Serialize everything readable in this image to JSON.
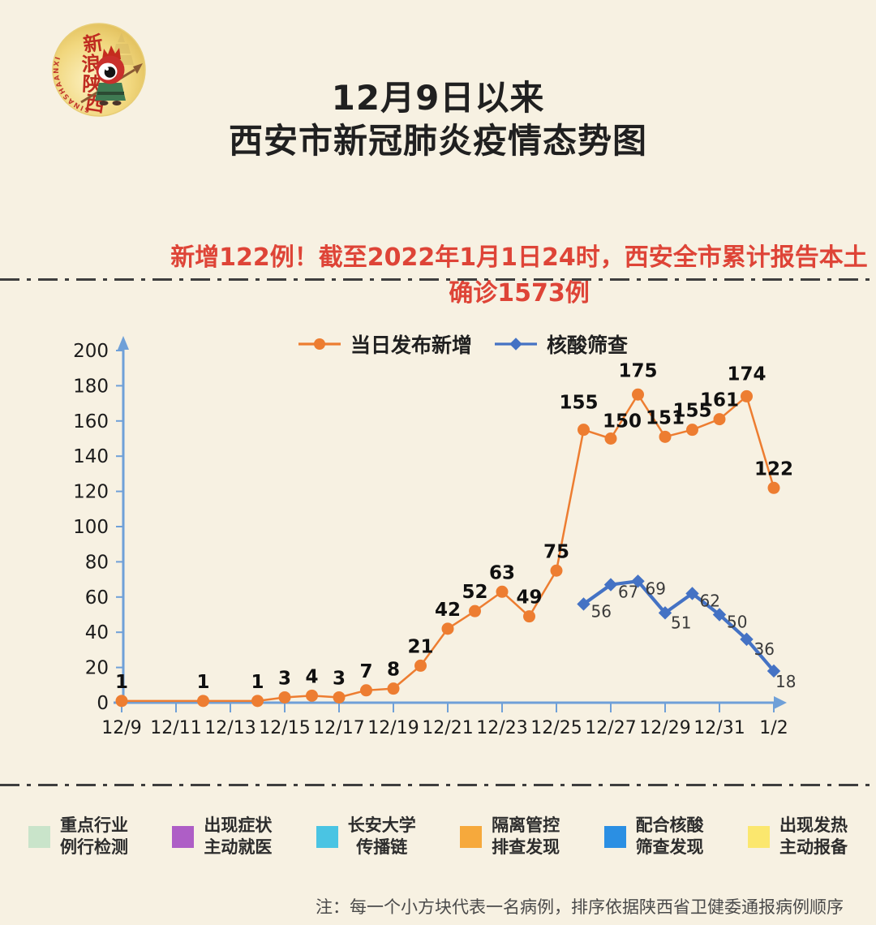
{
  "logo": {
    "brand_chars": [
      "新",
      "浪",
      "陕",
      "西"
    ],
    "brand_latin": "SINASHAANXI"
  },
  "title": {
    "line1": "12月9日以来",
    "line2": "西安市新冠肺炎疫情态势图"
  },
  "subtitle": "新增122例！截至2022年1月1日24时，西安全市累计报告本土确诊1573例",
  "colors": {
    "background": "#F7F1E2",
    "title_text": "#202020",
    "subtitle_red": "#DE4437",
    "axis_blue": "#6FA0D8",
    "tick_label": "#1c1c1c",
    "orange_series": "#ED7D31",
    "blue_series": "#4472C4"
  },
  "chart_data": {
    "type": "line",
    "title": "",
    "legend_position": "top",
    "grid": false,
    "x_axis": {
      "unit": "date",
      "start_date": "12/9",
      "end_date": "1/2",
      "tick_labels": [
        "12/9",
        "12/11",
        "12/13",
        "12/15",
        "12/17",
        "12/19",
        "12/21",
        "12/23",
        "12/25",
        "12/27",
        "12/29",
        "12/31",
        "1/2"
      ]
    },
    "y_axis": {
      "min": 0,
      "max": 200,
      "tick_step": 20,
      "ticks": [
        0,
        20,
        40,
        60,
        80,
        100,
        120,
        140,
        160,
        180,
        200
      ]
    },
    "series": [
      {
        "name": "当日发布新增",
        "color": "#ED7D31",
        "marker": "circle",
        "points": [
          {
            "date": "12/9",
            "day": 0,
            "value": 1
          },
          {
            "date": "12/12",
            "day": 3,
            "value": 1
          },
          {
            "date": "12/14",
            "day": 5,
            "value": 1
          },
          {
            "date": "12/15",
            "day": 6,
            "value": 3
          },
          {
            "date": "12/16",
            "day": 7,
            "value": 4
          },
          {
            "date": "12/17",
            "day": 8,
            "value": 3
          },
          {
            "date": "12/18",
            "day": 9,
            "value": 7
          },
          {
            "date": "12/19",
            "day": 10,
            "value": 8
          },
          {
            "date": "12/20",
            "day": 11,
            "value": 21
          },
          {
            "date": "12/21",
            "day": 12,
            "value": 42
          },
          {
            "date": "12/22",
            "day": 13,
            "value": 52
          },
          {
            "date": "12/23",
            "day": 14,
            "value": 63
          },
          {
            "date": "12/24",
            "day": 15,
            "value": 49
          },
          {
            "date": "12/25",
            "day": 16,
            "value": 75
          },
          {
            "date": "12/26",
            "day": 17,
            "value": 155
          },
          {
            "date": "12/27",
            "day": 18,
            "value": 150
          },
          {
            "date": "12/28",
            "day": 19,
            "value": 175
          },
          {
            "date": "12/29",
            "day": 20,
            "value": 151
          },
          {
            "date": "12/30",
            "day": 21,
            "value": 155
          },
          {
            "date": "12/31",
            "day": 22,
            "value": 161
          },
          {
            "date": "1/1",
            "day": 23,
            "value": 174
          },
          {
            "date": "1/2",
            "day": 24,
            "value": 122
          }
        ]
      },
      {
        "name": "核酸筛查",
        "color": "#4472C4",
        "marker": "diamond",
        "points": [
          {
            "date": "12/26",
            "day": 17,
            "value": 56
          },
          {
            "date": "12/27",
            "day": 18,
            "value": 67
          },
          {
            "date": "12/28",
            "day": 19,
            "value": 69
          },
          {
            "date": "12/29",
            "day": 20,
            "value": 51
          },
          {
            "date": "12/30",
            "day": 21,
            "value": 62
          },
          {
            "date": "12/31",
            "day": 22,
            "value": 50
          },
          {
            "date": "1/1",
            "day": 23,
            "value": 36
          },
          {
            "date": "1/2",
            "day": 24,
            "value": 18
          }
        ]
      }
    ]
  },
  "case_legend": {
    "items": [
      {
        "lines": [
          "重点行业",
          "例行检测"
        ],
        "color": "#C9E4CA"
      },
      {
        "lines": [
          "出现症状",
          "主动就医"
        ],
        "color": "#AE5EC6"
      },
      {
        "lines": [
          "长安大学",
          "传播链"
        ],
        "color": "#4AC4E3"
      },
      {
        "lines": [
          "隔离管控",
          "排查发现"
        ],
        "color": "#F6A93C"
      },
      {
        "lines": [
          "配合核酸",
          "筛查发现"
        ],
        "color": "#2B8FE3"
      },
      {
        "lines": [
          "出现发热",
          "主动报备"
        ],
        "color": "#FBE76E"
      }
    ]
  },
  "note": "注：每一个小方块代表一名病例，排序依据陕西省卫健委通报病例顺序"
}
